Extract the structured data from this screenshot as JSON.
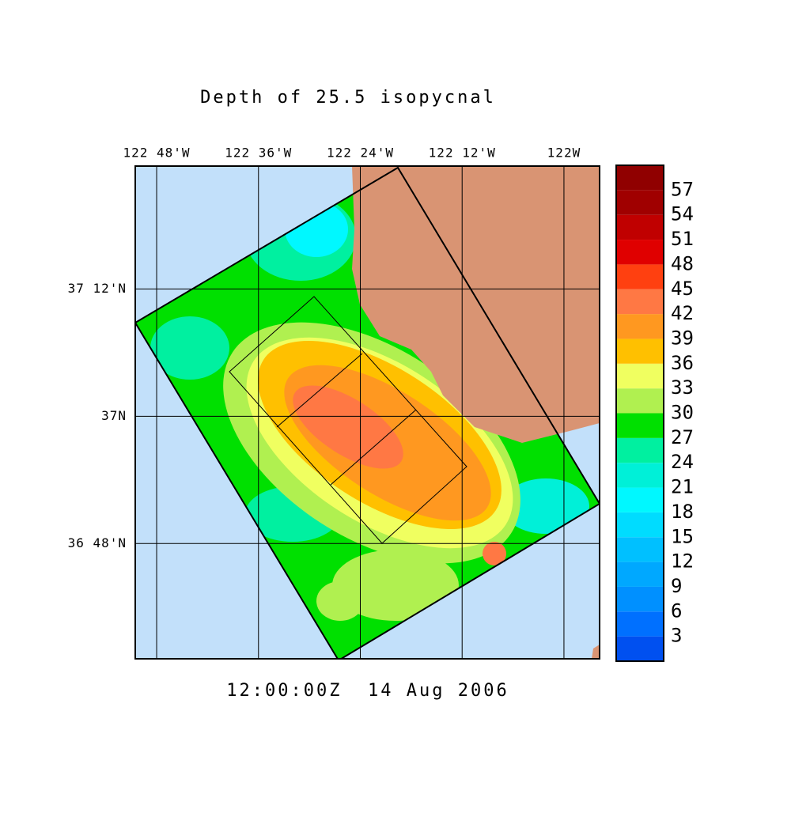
{
  "title": "Depth of 25.5 isopycnal",
  "timestamp": "12:00:00Z  14 Aug 2006",
  "map": {
    "xlim": [
      -122.842,
      -121.93
    ],
    "ylim": [
      36.619,
      37.393
    ],
    "xticks": [
      {
        "value": -122.8,
        "label": "122 48'W"
      },
      {
        "value": -122.6,
        "label": "122 36'W"
      },
      {
        "value": -122.4,
        "label": "122 24'W"
      },
      {
        "value": -122.2,
        "label": "122 12'W"
      },
      {
        "value": -122.0,
        "label": "122W"
      }
    ],
    "yticks": [
      {
        "value": 37.2,
        "label": "37 12'N"
      },
      {
        "value": 37.0,
        "label": "37N"
      },
      {
        "value": 36.8,
        "label": "36 48'N"
      }
    ],
    "grid": true
  },
  "colorbar": {
    "clim": [
      0,
      60
    ],
    "levels": [
      3,
      6,
      9,
      12,
      15,
      18,
      21,
      24,
      27,
      30,
      33,
      36,
      39,
      42,
      45,
      48,
      51,
      54,
      57
    ],
    "colors": [
      "#0000b4",
      "#0018d0",
      "#0034e4",
      "#0050f0",
      "#0070ff",
      "#0090ff",
      "#00a8ff",
      "#00c0ff",
      "#00dcff",
      "#00f8ff",
      "#00f0d8",
      "#00f0a0",
      "#00e000",
      "#b0f050",
      "#f0ff60",
      "#ffc000",
      "#ff9820",
      "#ff7844",
      "#ff4010",
      "#e00000",
      "#c00000",
      "#a00000",
      "#900000"
    ]
  }
}
